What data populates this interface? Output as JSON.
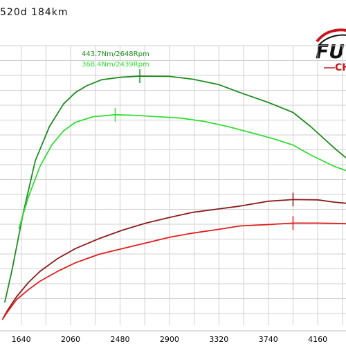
{
  "header": {
    "title": "520d 184km"
  },
  "logo": {
    "main_text": "FU",
    "sub_text": "CH",
    "accent_color": "#c8141e"
  },
  "chart_data": {
    "type": "line",
    "title": "520d 184km",
    "xlabel": "",
    "ylabel": "",
    "xlim": [
      1460,
      4400
    ],
    "x_ticks": [
      1640,
      2060,
      2480,
      2900,
      3320,
      3740,
      4160
    ],
    "grid": true,
    "series": [
      {
        "color": "#1c8c1c",
        "marker": {
          "x": 2648,
          "label": "443.7Nm/2648Rpm"
        },
        "points": [
          [
            1500,
            0.08
          ],
          [
            1560,
            0.19
          ],
          [
            1660,
            0.4
          ],
          [
            1760,
            0.58
          ],
          [
            1880,
            0.7
          ],
          [
            2000,
            0.78
          ],
          [
            2100,
            0.82
          ],
          [
            2200,
            0.845
          ],
          [
            2320,
            0.865
          ],
          [
            2480,
            0.874
          ],
          [
            2648,
            0.878
          ],
          [
            2900,
            0.877
          ],
          [
            3100,
            0.867
          ],
          [
            3320,
            0.848
          ],
          [
            3500,
            0.82
          ],
          [
            3740,
            0.785
          ],
          [
            3950,
            0.75
          ],
          [
            4100,
            0.7
          ],
          [
            4300,
            0.625
          ],
          [
            4400,
            0.59
          ]
        ]
      },
      {
        "color": "#33dd33",
        "marker": {
          "x": 2439,
          "label": "368.4Nm/2439Rpm"
        },
        "points": [
          [
            1620,
            0.34
          ],
          [
            1700,
            0.45
          ],
          [
            1800,
            0.56
          ],
          [
            1900,
            0.635
          ],
          [
            2000,
            0.685
          ],
          [
            2100,
            0.715
          ],
          [
            2250,
            0.735
          ],
          [
            2439,
            0.742
          ],
          [
            2600,
            0.74
          ],
          [
            2800,
            0.735
          ],
          [
            3000,
            0.73
          ],
          [
            3200,
            0.718
          ],
          [
            3400,
            0.7
          ],
          [
            3600,
            0.678
          ],
          [
            3800,
            0.655
          ],
          [
            3950,
            0.635
          ],
          [
            4100,
            0.6
          ],
          [
            4300,
            0.56
          ],
          [
            4400,
            0.545
          ]
        ]
      },
      {
        "color": "#8b1a1a",
        "marker": {
          "x": 3950,
          "label": ""
        },
        "points": [
          [
            1480,
            0.02
          ],
          [
            1520,
            0.05
          ],
          [
            1600,
            0.1
          ],
          [
            1700,
            0.15
          ],
          [
            1800,
            0.19
          ],
          [
            1950,
            0.235
          ],
          [
            2100,
            0.27
          ],
          [
            2300,
            0.305
          ],
          [
            2500,
            0.335
          ],
          [
            2700,
            0.36
          ],
          [
            2900,
            0.38
          ],
          [
            3100,
            0.398
          ],
          [
            3320,
            0.41
          ],
          [
            3500,
            0.42
          ],
          [
            3740,
            0.437
          ],
          [
            3950,
            0.443
          ],
          [
            4160,
            0.442
          ],
          [
            4300,
            0.434
          ],
          [
            4400,
            0.43
          ]
        ]
      },
      {
        "color": "#e31b1b",
        "marker": {
          "x": 3950,
          "label": ""
        },
        "points": [
          [
            1480,
            0.02
          ],
          [
            1520,
            0.045
          ],
          [
            1600,
            0.09
          ],
          [
            1700,
            0.125
          ],
          [
            1800,
            0.155
          ],
          [
            1950,
            0.19
          ],
          [
            2100,
            0.22
          ],
          [
            2300,
            0.25
          ],
          [
            2500,
            0.27
          ],
          [
            2700,
            0.29
          ],
          [
            2900,
            0.31
          ],
          [
            3100,
            0.325
          ],
          [
            3320,
            0.338
          ],
          [
            3500,
            0.35
          ],
          [
            3740,
            0.355
          ],
          [
            3950,
            0.36
          ],
          [
            4160,
            0.36
          ],
          [
            4300,
            0.359
          ],
          [
            4400,
            0.358
          ]
        ]
      }
    ]
  }
}
